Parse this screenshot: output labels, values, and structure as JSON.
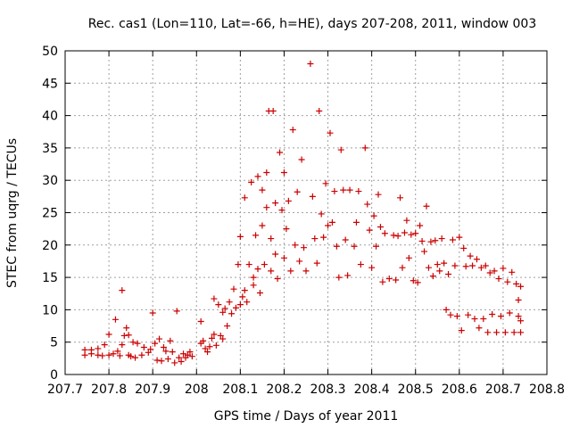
{
  "chart_data": {
    "type": "scatter",
    "title": "Rec. cas1 (Lon=110, Lat=-66, h=HE), days 207-208, 2011, window 003",
    "xlabel": "GPS time / Days of year 2011",
    "ylabel": "STEC from uqrg / TECUs",
    "xlim": [
      207.7,
      208.8
    ],
    "ylim": [
      0,
      50
    ],
    "xticks": [
      207.7,
      207.8,
      207.9,
      208.0,
      208.1,
      208.2,
      208.3,
      208.4,
      208.5,
      208.6,
      208.7,
      208.8
    ],
    "xtick_labels": [
      "207.7",
      "207.8",
      "207.9",
      "208",
      "208.1",
      "208.2",
      "208.3",
      "208.4",
      "208.5",
      "208.6",
      "208.7",
      "208.8"
    ],
    "yticks": [
      0,
      5,
      10,
      15,
      20,
      25,
      30,
      35,
      40,
      45,
      50
    ],
    "ytick_labels": [
      "0",
      "5",
      "10",
      "15",
      "20",
      "25",
      "30",
      "35",
      "40",
      "45",
      "50"
    ],
    "grid": true,
    "marker": "+",
    "color": "#cc0000",
    "series": [
      {
        "name": "STEC",
        "points": [
          [
            207.745,
            3.0
          ],
          [
            207.745,
            3.8
          ],
          [
            207.76,
            3.2
          ],
          [
            207.76,
            3.8
          ],
          [
            207.775,
            3.0
          ],
          [
            207.775,
            4.0
          ],
          [
            207.785,
            2.9
          ],
          [
            207.79,
            4.6
          ],
          [
            207.8,
            3.0
          ],
          [
            207.8,
            6.2
          ],
          [
            207.81,
            3.2
          ],
          [
            207.815,
            8.5
          ],
          [
            207.82,
            3.6
          ],
          [
            207.825,
            2.9
          ],
          [
            207.83,
            13.0
          ],
          [
            207.83,
            4.6
          ],
          [
            207.835,
            6.0
          ],
          [
            207.84,
            7.2
          ],
          [
            207.845,
            3.0
          ],
          [
            207.845,
            6.1
          ],
          [
            207.85,
            2.8
          ],
          [
            207.855,
            5.0
          ],
          [
            207.86,
            2.6
          ],
          [
            207.865,
            4.8
          ],
          [
            207.875,
            3.0
          ],
          [
            207.88,
            4.2
          ],
          [
            207.89,
            3.4
          ],
          [
            207.895,
            3.9
          ],
          [
            207.9,
            9.5
          ],
          [
            207.905,
            4.8
          ],
          [
            207.91,
            2.2
          ],
          [
            207.915,
            5.5
          ],
          [
            207.92,
            2.1
          ],
          [
            207.925,
            4.2
          ],
          [
            207.93,
            3.6
          ],
          [
            207.935,
            2.4
          ],
          [
            207.94,
            5.2
          ],
          [
            207.945,
            3.5
          ],
          [
            207.95,
            1.8
          ],
          [
            207.955,
            9.8
          ],
          [
            207.96,
            2.6
          ],
          [
            207.965,
            2.0
          ],
          [
            207.97,
            3.2
          ],
          [
            207.975,
            2.6
          ],
          [
            207.98,
            3.0
          ],
          [
            207.985,
            3.5
          ],
          [
            207.99,
            2.8
          ],
          [
            208.01,
            8.2
          ],
          [
            208.01,
            4.8
          ],
          [
            208.015,
            5.2
          ],
          [
            208.02,
            4.0
          ],
          [
            208.025,
            3.5
          ],
          [
            208.03,
            4.3
          ],
          [
            208.035,
            5.6
          ],
          [
            208.04,
            11.7
          ],
          [
            208.04,
            6.2
          ],
          [
            208.045,
            4.5
          ],
          [
            208.05,
            10.8
          ],
          [
            208.055,
            6.0
          ],
          [
            208.06,
            9.6
          ],
          [
            208.06,
            5.5
          ],
          [
            208.065,
            10.2
          ],
          [
            208.07,
            7.5
          ],
          [
            208.075,
            11.2
          ],
          [
            208.08,
            9.4
          ],
          [
            208.085,
            13.2
          ],
          [
            208.09,
            10.3
          ],
          [
            208.095,
            17.0
          ],
          [
            208.1,
            21.3
          ],
          [
            208.1,
            10.8
          ],
          [
            208.105,
            12.0
          ],
          [
            208.11,
            27.3
          ],
          [
            208.11,
            13.0
          ],
          [
            208.115,
            11.2
          ],
          [
            208.12,
            17.0
          ],
          [
            208.125,
            29.7
          ],
          [
            208.13,
            15.0
          ],
          [
            208.13,
            13.8
          ],
          [
            208.135,
            21.5
          ],
          [
            208.14,
            30.6
          ],
          [
            208.14,
            16.3
          ],
          [
            208.145,
            12.6
          ],
          [
            208.15,
            28.5
          ],
          [
            208.15,
            23.0
          ],
          [
            208.155,
            17.0
          ],
          [
            208.16,
            31.2
          ],
          [
            208.16,
            25.8
          ],
          [
            208.165,
            40.7
          ],
          [
            208.17,
            21.0
          ],
          [
            208.17,
            16.0
          ],
          [
            208.175,
            40.7
          ],
          [
            208.18,
            26.5
          ],
          [
            208.18,
            18.6
          ],
          [
            208.185,
            14.8
          ],
          [
            208.19,
            34.3
          ],
          [
            208.195,
            25.4
          ],
          [
            208.2,
            31.2
          ],
          [
            208.2,
            18.0
          ],
          [
            208.205,
            22.5
          ],
          [
            208.21,
            26.8
          ],
          [
            208.215,
            16.0
          ],
          [
            208.22,
            37.8
          ],
          [
            208.225,
            20.0
          ],
          [
            208.23,
            28.2
          ],
          [
            208.235,
            17.5
          ],
          [
            208.24,
            33.2
          ],
          [
            208.245,
            19.6
          ],
          [
            208.25,
            16.0
          ],
          [
            208.26,
            48.0
          ],
          [
            208.265,
            27.5
          ],
          [
            208.27,
            21.0
          ],
          [
            208.275,
            17.2
          ],
          [
            208.28,
            40.7
          ],
          [
            208.285,
            24.8
          ],
          [
            208.29,
            21.2
          ],
          [
            208.295,
            29.5
          ],
          [
            208.3,
            23.0
          ],
          [
            208.305,
            37.3
          ],
          [
            208.31,
            23.5
          ],
          [
            208.315,
            28.3
          ],
          [
            208.32,
            19.8
          ],
          [
            208.325,
            15.0
          ],
          [
            208.33,
            34.7
          ],
          [
            208.335,
            28.5
          ],
          [
            208.34,
            20.8
          ],
          [
            208.345,
            15.3
          ],
          [
            208.35,
            28.5
          ],
          [
            208.36,
            19.8
          ],
          [
            208.365,
            23.5
          ],
          [
            208.37,
            28.3
          ],
          [
            208.375,
            17.0
          ],
          [
            208.385,
            35.0
          ],
          [
            208.39,
            26.3
          ],
          [
            208.395,
            22.3
          ],
          [
            208.4,
            16.5
          ],
          [
            208.405,
            24.5
          ],
          [
            208.41,
            19.8
          ],
          [
            208.415,
            27.8
          ],
          [
            208.42,
            22.8
          ],
          [
            208.425,
            14.3
          ],
          [
            208.43,
            21.8
          ],
          [
            208.44,
            14.8
          ],
          [
            208.45,
            21.5
          ],
          [
            208.455,
            14.6
          ],
          [
            208.46,
            21.4
          ],
          [
            208.465,
            27.3
          ],
          [
            208.47,
            16.5
          ],
          [
            208.475,
            21.9
          ],
          [
            208.48,
            23.8
          ],
          [
            208.485,
            18.0
          ],
          [
            208.49,
            21.6
          ],
          [
            208.495,
            14.5
          ],
          [
            208.5,
            21.8
          ],
          [
            208.505,
            14.2
          ],
          [
            208.51,
            23.0
          ],
          [
            208.515,
            20.6
          ],
          [
            208.52,
            19.0
          ],
          [
            208.525,
            26.0
          ],
          [
            208.53,
            16.5
          ],
          [
            208.535,
            20.5
          ],
          [
            208.54,
            15.2
          ],
          [
            208.545,
            20.7
          ],
          [
            208.55,
            17.0
          ],
          [
            208.555,
            16.0
          ],
          [
            208.56,
            21.0
          ],
          [
            208.565,
            17.2
          ],
          [
            208.57,
            10.0
          ],
          [
            208.575,
            15.5
          ],
          [
            208.58,
            9.2
          ],
          [
            208.585,
            20.8
          ],
          [
            208.59,
            16.8
          ],
          [
            208.595,
            9.0
          ],
          [
            208.6,
            21.2
          ],
          [
            208.605,
            6.8
          ],
          [
            208.61,
            19.5
          ],
          [
            208.615,
            16.7
          ],
          [
            208.62,
            9.2
          ],
          [
            208.625,
            18.3
          ],
          [
            208.63,
            16.8
          ],
          [
            208.635,
            8.6
          ],
          [
            208.64,
            17.8
          ],
          [
            208.645,
            7.2
          ],
          [
            208.65,
            16.5
          ],
          [
            208.655,
            8.6
          ],
          [
            208.66,
            16.8
          ],
          [
            208.665,
            6.5
          ],
          [
            208.67,
            15.7
          ],
          [
            208.675,
            9.3
          ],
          [
            208.68,
            16.0
          ],
          [
            208.685,
            6.5
          ],
          [
            208.69,
            14.8
          ],
          [
            208.695,
            9.0
          ],
          [
            208.7,
            16.4
          ],
          [
            208.705,
            6.5
          ],
          [
            208.71,
            14.3
          ],
          [
            208.715,
            9.5
          ],
          [
            208.72,
            15.8
          ],
          [
            208.725,
            6.5
          ],
          [
            208.73,
            14.0
          ],
          [
            208.735,
            9.0
          ],
          [
            208.735,
            11.5
          ],
          [
            208.74,
            13.6
          ],
          [
            208.74,
            8.3
          ],
          [
            208.74,
            6.5
          ]
        ]
      }
    ]
  }
}
